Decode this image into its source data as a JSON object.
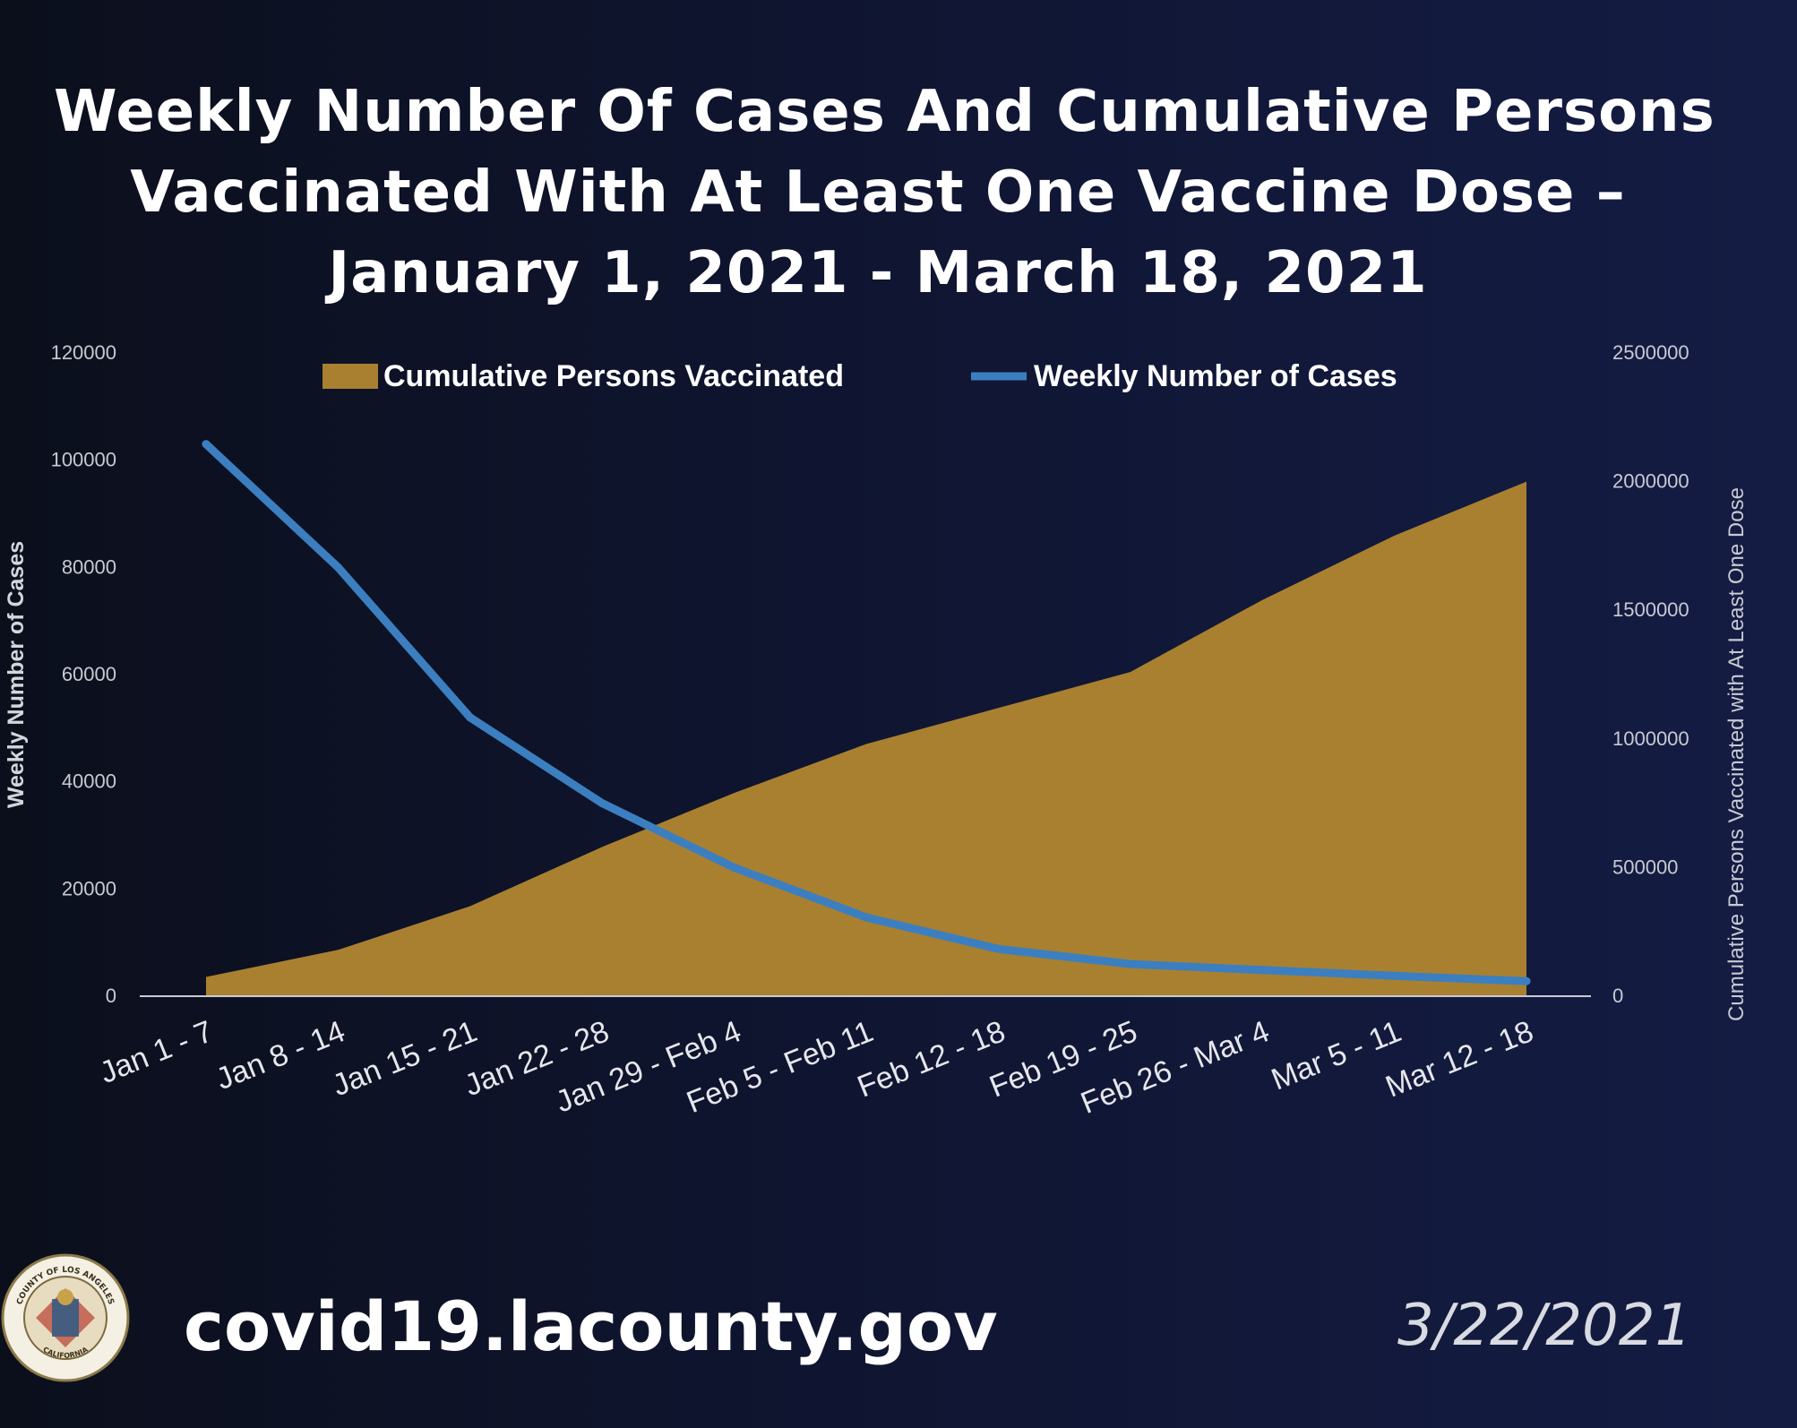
{
  "slide": {
    "title_lines": [
      "Weekly Number Of Cases And Cumulative Persons",
      "Vaccinated With At Least One Vaccine Dose –",
      "January 1, 2021 - March 18, 2021"
    ],
    "footer_url": "covid19.lacounty.gov",
    "footer_date": "3/22/2021",
    "seal": {
      "icon": "la-county-seal-icon",
      "text_top": "COUNTY OF LOS ANGELES",
      "text_bottom": "CALIFORNIA"
    }
  },
  "chart_data": {
    "type": "area+line",
    "categories": [
      "Jan 1 - 7",
      "Jan 8 - 14",
      "Jan 15 - 21",
      "Jan 22 - 28",
      "Jan 29 - Feb 4",
      "Feb 5 - Feb 11",
      "Feb 12 - 18",
      "Feb 19 - 25",
      "Feb 26 - Mar 4",
      "Mar 5 - 11",
      "Mar 12 - 18"
    ],
    "series": [
      {
        "name": "Cumulative Persons Vaccinated",
        "chart_type": "area",
        "axis": "right",
        "color": "#a98030",
        "values": [
          75000,
          180000,
          350000,
          580000,
          790000,
          980000,
          1120000,
          1260000,
          1540000,
          1790000,
          2000000
        ]
      },
      {
        "name": "Weekly Number of Cases",
        "chart_type": "line",
        "axis": "left",
        "color": "#3b7fc0",
        "values": [
          103000,
          80000,
          52000,
          36000,
          24000,
          14700,
          8800,
          6000,
          4900,
          3800,
          2800
        ]
      }
    ],
    "y_left": {
      "label": "Weekly Number of Cases",
      "range": [
        0,
        120000
      ],
      "ticks": [
        0,
        20000,
        40000,
        60000,
        80000,
        100000,
        120000
      ]
    },
    "y_right": {
      "label": "Cumulative Persons Vaccinated with At Least One Dose",
      "range": [
        0,
        2500000
      ],
      "ticks": [
        0,
        500000,
        1000000,
        1500000,
        2000000,
        2500000
      ]
    },
    "legend_position": "top-center",
    "grid": false
  }
}
